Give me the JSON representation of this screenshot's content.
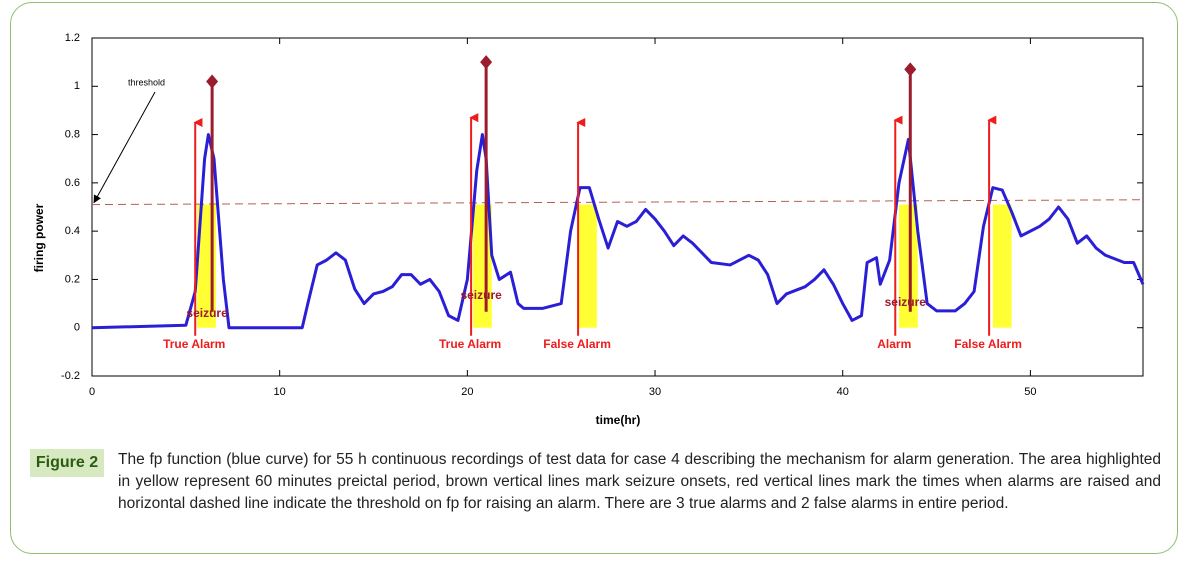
{
  "chart_data": {
    "type": "line",
    "xlabel": "time(hr)",
    "ylabel": "firing power",
    "xlim": [
      0,
      56
    ],
    "ylim": [
      -0.2,
      1.2
    ],
    "xticks": [
      0,
      10,
      20,
      30,
      40,
      50
    ],
    "yticks": [
      -0.2,
      0,
      0.2,
      0.4,
      0.6,
      0.8,
      1,
      1.2
    ],
    "series": [
      {
        "name": "fp",
        "color": "#2a1fd6",
        "x": [
          0,
          5,
          5.5,
          6,
          6.2,
          6.5,
          7,
          7.3,
          11.2,
          11.5,
          12,
          12.5,
          13,
          13.5,
          14,
          14.5,
          15,
          15.5,
          16,
          16.5,
          17,
          17.5,
          18,
          18.5,
          19,
          19.5,
          20,
          20.5,
          20.8,
          21,
          21.3,
          21.7,
          22.3,
          22.7,
          23,
          24,
          25,
          25.5,
          26,
          26.5,
          27,
          27.5,
          28,
          28.5,
          29,
          29.5,
          30,
          30.5,
          31,
          31.5,
          32,
          33,
          34,
          35,
          35.5,
          36,
          36.5,
          37,
          38,
          38.5,
          39,
          39.5,
          40,
          40.5,
          41,
          41.3,
          41.8,
          42,
          42.5,
          43,
          43.5,
          44,
          44.5,
          45,
          46,
          46.5,
          47,
          47.5,
          48,
          48.5,
          49,
          49.5,
          50,
          50.5,
          51,
          51.5,
          52,
          52.5,
          53,
          53.5,
          54,
          55,
          55.5,
          56
        ],
        "values": [
          0,
          0.01,
          0.15,
          0.7,
          0.8,
          0.7,
          0.2,
          0,
          0,
          0.1,
          0.26,
          0.28,
          0.31,
          0.28,
          0.16,
          0.1,
          0.14,
          0.15,
          0.17,
          0.22,
          0.22,
          0.18,
          0.2,
          0.15,
          0.05,
          0.03,
          0.2,
          0.65,
          0.8,
          0.7,
          0.3,
          0.2,
          0.23,
          0.1,
          0.08,
          0.08,
          0.1,
          0.4,
          0.58,
          0.58,
          0.45,
          0.33,
          0.44,
          0.42,
          0.44,
          0.49,
          0.45,
          0.4,
          0.34,
          0.38,
          0.35,
          0.27,
          0.26,
          0.3,
          0.28,
          0.22,
          0.1,
          0.14,
          0.17,
          0.2,
          0.24,
          0.18,
          0.1,
          0.03,
          0.05,
          0.27,
          0.29,
          0.18,
          0.28,
          0.6,
          0.78,
          0.4,
          0.1,
          0.07,
          0.07,
          0.1,
          0.15,
          0.42,
          0.58,
          0.57,
          0.48,
          0.38,
          0.4,
          0.42,
          0.45,
          0.5,
          0.45,
          0.35,
          0.38,
          0.33,
          0.3,
          0.27,
          0.27,
          0.18
        ]
      }
    ],
    "threshold": {
      "name": "threshold",
      "color": "#b3604f",
      "x": [
        0,
        56
      ],
      "values": [
        0.51,
        0.53
      ]
    },
    "preictal": {
      "color": "#ffff33",
      "level": 0.51,
      "x": [
        [
          5.6,
          6.6
        ],
        [
          20.3,
          21.3
        ],
        [
          25.9,
          26.9
        ],
        [
          43,
          44
        ],
        [
          48,
          49
        ]
      ]
    },
    "alarms": {
      "color": "#ee1c1c",
      "x": [
        5.5,
        20.2,
        25.9,
        42.8,
        47.8
      ],
      "values": [
        0.85,
        0.87,
        0.85,
        0.86,
        0.86
      ],
      "labels": [
        "True Alarm",
        "True Alarm",
        "False Alarm",
        "Alarm",
        "False Alarm"
      ]
    },
    "seizures": {
      "color": "#9b1c2c",
      "label": "seizure",
      "x": [
        6.4,
        21,
        43.6
      ],
      "values": [
        1.02,
        1.1,
        1.07
      ]
    }
  },
  "caption": {
    "label": "Figure 2",
    "text": "The fp function (blue curve) for 55 h continuous recordings of test data for case 4 describing the mechanism for alarm generation. The area highlighted in yellow represent 60 minutes preictal period, brown vertical lines mark seizure onsets, red vertical lines mark the times when alarms are raised and horizontal dashed line indicate the threshold on fp for raising an alarm. There are 3 true alarms and 2 false alarms in entire period."
  }
}
